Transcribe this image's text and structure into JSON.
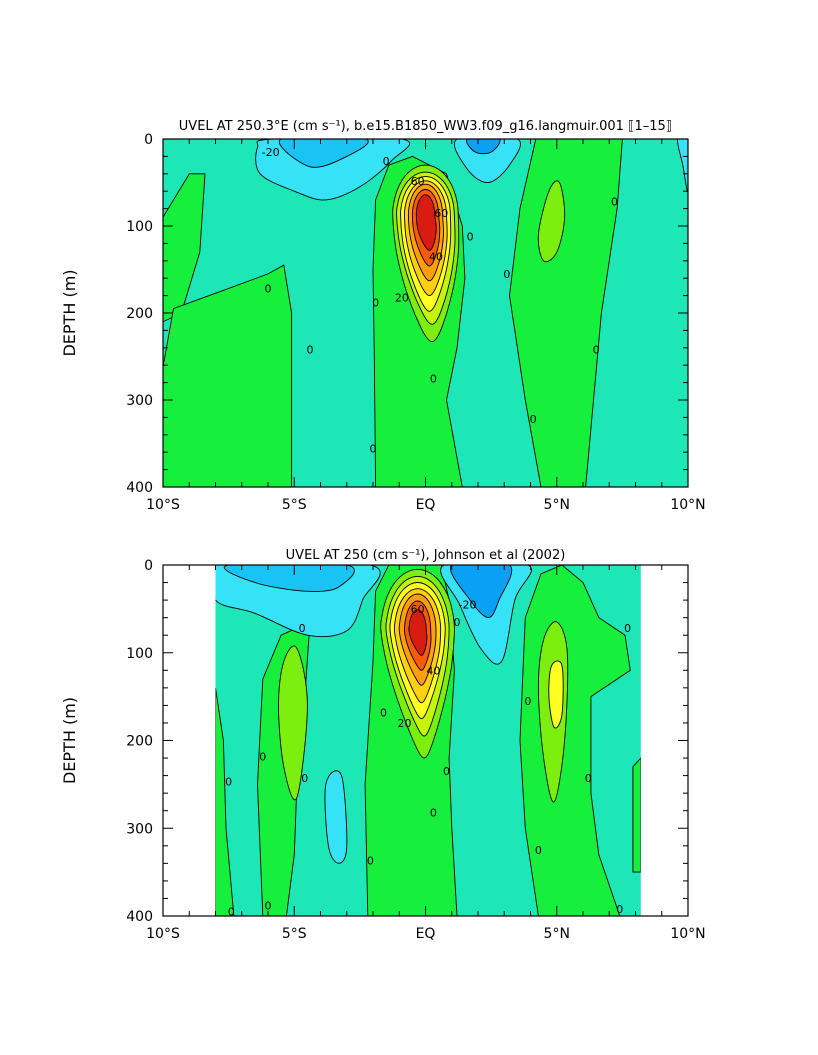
{
  "chart_data": [
    {
      "type": "contour",
      "title": "UVEL AT 250.3°E (cm s⁻¹), b.e15.B1850_WW3.f09_g16.langmuir.001 ⟦1–15⟧",
      "xlabel": "",
      "ylabel": "DEPTH (m)",
      "xlim": [
        -10,
        10
      ],
      "ylim": [
        400,
        0
      ],
      "xticks": [
        -10,
        -5,
        0,
        5,
        10
      ],
      "xtick_labels": [
        "10°S",
        "5°S",
        "EQ",
        "5°N",
        "10°N"
      ],
      "yticks": [
        0,
        100,
        200,
        300,
        400
      ],
      "ytick_labels": [
        "0",
        "100",
        "200",
        "300",
        "400"
      ],
      "data_extent": [
        -10,
        10
      ],
      "contour_interval": 10,
      "contour_labels": [
        {
          "x": -5.9,
          "y": 15,
          "text": "-20"
        },
        {
          "x": -1.5,
          "y": 25,
          "text": "0"
        },
        {
          "x": -0.3,
          "y": 48,
          "text": "60"
        },
        {
          "x": 0.6,
          "y": 85,
          "text": "60"
        },
        {
          "x": 0.4,
          "y": 135,
          "text": "40"
        },
        {
          "x": -0.9,
          "y": 182,
          "text": "20"
        },
        {
          "x": 1.7,
          "y": 112,
          "text": "0"
        },
        {
          "x": -6.0,
          "y": 172,
          "text": "0"
        },
        {
          "x": -1.9,
          "y": 188,
          "text": "0"
        },
        {
          "x": -4.4,
          "y": 242,
          "text": "0"
        },
        {
          "x": 0.3,
          "y": 275,
          "text": "0"
        },
        {
          "x": 3.1,
          "y": 155,
          "text": "0"
        },
        {
          "x": 4.1,
          "y": 322,
          "text": "0"
        },
        {
          "x": 6.5,
          "y": 242,
          "text": "0"
        },
        {
          "x": 7.2,
          "y": 72,
          "text": "0"
        },
        {
          "x": -2.0,
          "y": 356,
          "text": "0"
        }
      ],
      "features": [
        {
          "kind": "jet-core",
          "x": 0.0,
          "y": 88,
          "max_value": 90
        },
        {
          "kind": "westward-surface",
          "x": -4.5,
          "y": 5,
          "min_value": -30
        },
        {
          "kind": "westward-surface",
          "x": 2.0,
          "y": 5,
          "min_value": -30
        },
        {
          "kind": "eastward-lobe",
          "x": 4.9,
          "y": 100,
          "max_value": 20
        }
      ]
    },
    {
      "type": "contour",
      "title": "UVEL AT 250 (cm s⁻¹), Johnson et al (2002)",
      "xlabel": "",
      "ylabel": "DEPTH (m)",
      "xlim": [
        -10,
        10
      ],
      "ylim": [
        400,
        0
      ],
      "xticks": [
        -10,
        -5,
        0,
        5,
        10
      ],
      "xtick_labels": [
        "10°S",
        "5°S",
        "EQ",
        "5°N",
        "10°N"
      ],
      "yticks": [
        0,
        100,
        200,
        300,
        400
      ],
      "ytick_labels": [
        "0",
        "100",
        "200",
        "300",
        "400"
      ],
      "data_extent": [
        -8,
        8.2
      ],
      "contour_interval": 10,
      "contour_labels": [
        {
          "x": -0.3,
          "y": 50,
          "text": "60"
        },
        {
          "x": 0.3,
          "y": 120,
          "text": "40"
        },
        {
          "x": -0.8,
          "y": 180,
          "text": "20"
        },
        {
          "x": 1.6,
          "y": 45,
          "text": "-20"
        },
        {
          "x": 1.2,
          "y": 65,
          "text": "0"
        },
        {
          "x": -4.7,
          "y": 72,
          "text": "0"
        },
        {
          "x": 7.7,
          "y": 72,
          "text": "0"
        },
        {
          "x": 3.9,
          "y": 155,
          "text": "0"
        },
        {
          "x": -1.6,
          "y": 168,
          "text": "0"
        },
        {
          "x": -6.2,
          "y": 218,
          "text": "0"
        },
        {
          "x": -4.6,
          "y": 243,
          "text": "0"
        },
        {
          "x": 0.8,
          "y": 235,
          "text": "0"
        },
        {
          "x": 6.2,
          "y": 243,
          "text": "0"
        },
        {
          "x": -7.5,
          "y": 247,
          "text": "0"
        },
        {
          "x": 0.3,
          "y": 282,
          "text": "0"
        },
        {
          "x": 4.3,
          "y": 325,
          "text": "0"
        },
        {
          "x": -2.1,
          "y": 337,
          "text": "0"
        },
        {
          "x": -6.0,
          "y": 388,
          "text": "0"
        },
        {
          "x": 7.4,
          "y": 392,
          "text": "0"
        },
        {
          "x": -7.4,
          "y": 395,
          "text": "0"
        }
      ],
      "features": [
        {
          "kind": "jet-core",
          "x": -0.3,
          "y": 75,
          "max_value": 90
        },
        {
          "kind": "westward-surface",
          "x": 2.2,
          "y": 15,
          "min_value": -30
        },
        {
          "kind": "eastward-lobe",
          "x": 4.9,
          "y": 135,
          "max_value": 40
        },
        {
          "kind": "eastward-lobe",
          "x": -5.0,
          "y": 160,
          "max_value": 20
        }
      ]
    }
  ],
  "colors": {
    "neg30": "#0aa1f5",
    "neg20": "#19c4f5",
    "neg10": "#36e2f5",
    "zero": "#1de6b7",
    "pos10": "#17ef3d",
    "pos20": "#7def0e",
    "pos40": "#c4f50a",
    "pos50": "#ffff21",
    "pos60": "#ffcf12",
    "pos70": "#ff9e0c",
    "pos80": "#f65b0a",
    "pos90": "#d91c10"
  }
}
